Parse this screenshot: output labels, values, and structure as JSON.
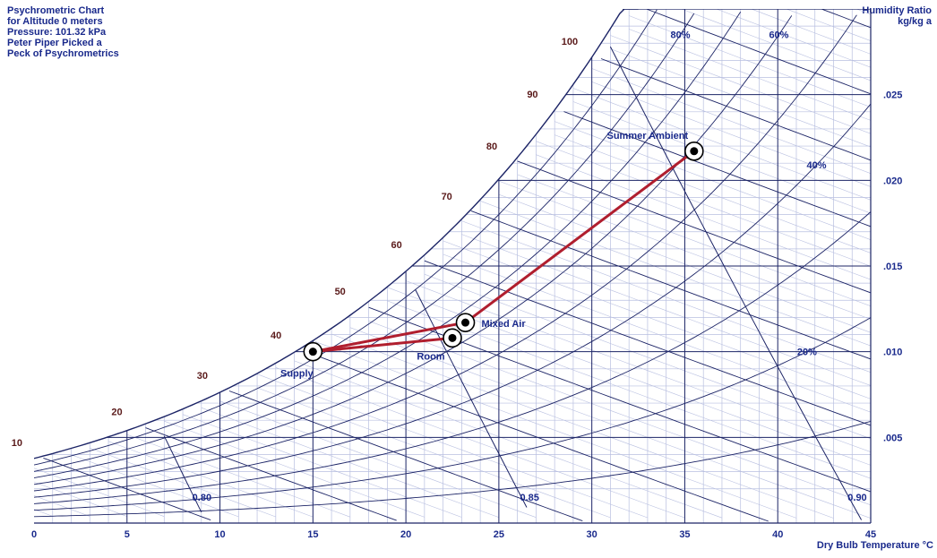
{
  "chart_data": {
    "type": "psychrometric",
    "title_lines": [
      "Psychrometric Chart",
      "for Altitude 0 meters",
      "Pressure: 101.32 kPa",
      "Peter Piper Picked a",
      "Peck of Psychrometrics"
    ],
    "xlabel": "Dry Bulb Temperature °C",
    "ylabel_lines": [
      "Humidity Ratio",
      "kg/kg a"
    ],
    "xlim": [
      0,
      45
    ],
    "ylim": [
      0,
      0.03
    ],
    "x_ticks": [
      "0",
      "5",
      "10",
      "15",
      "20",
      "25",
      "30",
      "35",
      "40",
      "45"
    ],
    "y_ticks": [
      ".005",
      ".010",
      ".015",
      ".020",
      ".025"
    ],
    "y_tick_values": [
      0.005,
      0.01,
      0.015,
      0.02,
      0.025
    ],
    "rh_curves_percent": [
      10,
      20,
      30,
      40,
      50,
      60,
      70,
      80,
      90
    ],
    "rh_labels": [
      {
        "text": "80%",
        "rh": 80
      },
      {
        "text": "60%",
        "rh": 60
      },
      {
        "text": "40%",
        "rh": 40
      },
      {
        "text": "20%",
        "rh": 20
      }
    ],
    "enthalpy_labels": [
      {
        "text": "10",
        "h": 10
      },
      {
        "text": "20",
        "h": 20
      },
      {
        "text": "30",
        "h": 30
      },
      {
        "text": "40",
        "h": 40
      },
      {
        "text": "50",
        "h": 50
      },
      {
        "text": "60",
        "h": 60
      },
      {
        "text": "70",
        "h": 70
      },
      {
        "text": "80",
        "h": 80
      },
      {
        "text": "90",
        "h": 90
      },
      {
        "text": "100",
        "h": 100
      }
    ],
    "volume_labels": [
      {
        "text": "0.80",
        "v": 0.8
      },
      {
        "text": "0.85",
        "v": 0.85
      },
      {
        "text": "0.90",
        "v": 0.9
      }
    ],
    "points": [
      {
        "label": "Supply",
        "t": 15.0,
        "w": 0.01
      },
      {
        "label": "Room",
        "t": 22.5,
        "w": 0.0108
      },
      {
        "label": "Mixed Air",
        "t": 23.2,
        "w": 0.0117
      },
      {
        "label": "Summer Ambient",
        "t": 35.5,
        "w": 0.0217
      }
    ],
    "process_lines": [
      [
        "Supply",
        "Room"
      ],
      [
        "Supply",
        "Mixed Air"
      ],
      [
        "Mixed Air",
        "Summer Ambient"
      ]
    ],
    "colors": {
      "axis_text": "#1a2a8c",
      "grid_light": "#b8bfe0",
      "grid_dark": "#1c2466",
      "process_line": "#b01e2e",
      "enthalpy_text": "#5a1a1a"
    }
  }
}
